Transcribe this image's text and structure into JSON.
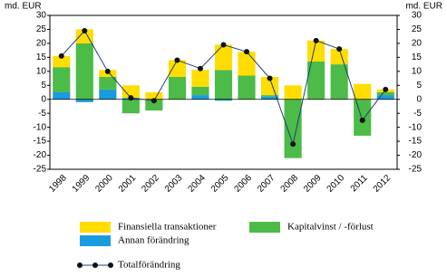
{
  "chart_data": {
    "type": "bar",
    "y_label": "md. EUR",
    "y2_label": "md. EUR",
    "categories": [
      "1998",
      "1999",
      "2000",
      "2001",
      "2002",
      "2003",
      "2004",
      "2005",
      "2006",
      "2007",
      "2008",
      "2009",
      "2010",
      "2011",
      "2012"
    ],
    "series": [
      {
        "name": "Annan förändring",
        "color": "#1a9be0",
        "values": [
          2.5,
          -1,
          3.5,
          0.5,
          0,
          0,
          1.5,
          -0.5,
          0,
          1,
          0,
          0,
          0,
          0,
          1.5
        ]
      },
      {
        "name": "Kapitalvinst / -förlust",
        "color": "#4cbb47",
        "values": [
          9,
          20,
          4.5,
          -5,
          -4,
          8,
          3,
          10.5,
          8.5,
          0.5,
          -21,
          13.5,
          12.5,
          -13,
          1
        ]
      },
      {
        "name": "Finansiella transaktioner",
        "color": "#ffdd00",
        "values": [
          4,
          5,
          2.5,
          4.5,
          2.5,
          6,
          6,
          9,
          8.5,
          6.5,
          5,
          7.5,
          5.5,
          5.5,
          1
        ]
      },
      {
        "name": "Totalförändring",
        "type": "line",
        "color": "#1f3f7a",
        "values": [
          15.5,
          24.5,
          10,
          0.5,
          -0.5,
          14,
          11,
          19.5,
          17,
          7.5,
          -16,
          21,
          18,
          -7.5,
          3.5
        ]
      }
    ],
    "ylim": [
      -25,
      30
    ],
    "yticks": [
      -25,
      -20,
      -15,
      -10,
      -5,
      0,
      5,
      10,
      15,
      20,
      25,
      30
    ],
    "y2lim": [
      -25,
      30
    ],
    "y2ticks": [
      -25,
      -20,
      -15,
      -10,
      -5,
      0,
      5,
      10,
      15,
      20,
      25,
      30
    ]
  }
}
